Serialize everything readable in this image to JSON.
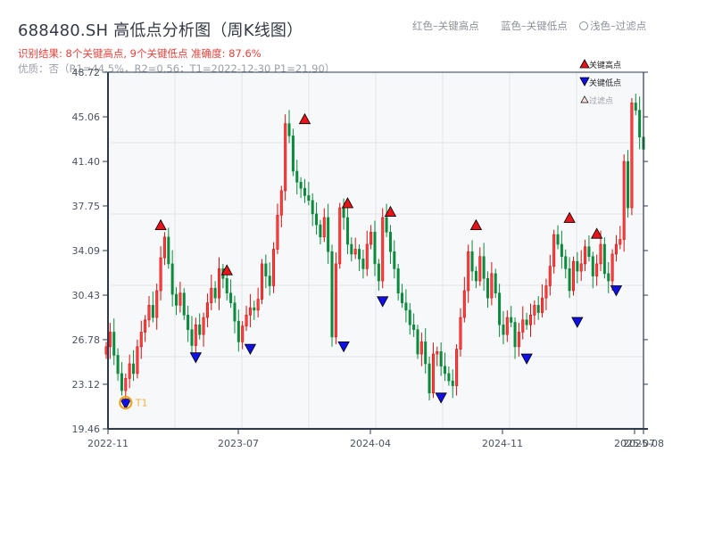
{
  "header": {
    "title": "688480.SH 高低点分析图（周K线图）",
    "subtitle": "识别结果: 8个关键高点, 9个关键低点  准确度: 87.6%",
    "quality": "优质：否（R1=44.5%，R2=0.56；T1=2022-12-30 P1=21.90）"
  },
  "top_legend": {
    "red": "红色–关键高点",
    "blue": "蓝色–关键低点",
    "faded": "浅色–过滤点"
  },
  "legend": {
    "high": "关键高点",
    "low": "关键低点",
    "filtered": "过滤点"
  },
  "colors": {
    "up": "#d40f0f",
    "down": "#0a8a3a",
    "high_marker": "#e8141a",
    "low_marker": "#1010e6",
    "t1_ring": "#f0a020",
    "axis": "#2e3a4a",
    "grid": "#e2e5ea",
    "plot_bg": "#f6f8fa"
  },
  "t1_label": "T1",
  "chart_data": {
    "type": "candlestick",
    "title": "688480.SH 高低点分析图（周K线图）",
    "xlabel": "",
    "ylabel": "",
    "ylim": [
      19.46,
      48.72
    ],
    "yticks": [
      19.46,
      23.12,
      26.78,
      30.43,
      34.09,
      37.75,
      41.4,
      45.06,
      48.72
    ],
    "xticks": [
      {
        "label": "2022-11",
        "index": 0
      },
      {
        "label": "2023-07",
        "index": 34
      },
      {
        "label": "2024-04",
        "index": 68
      },
      {
        "label": "2024-11",
        "index": 102
      },
      {
        "label": "2025-07",
        "index": 136
      },
      {
        "label": "2025-08",
        "index": 138
      }
    ],
    "grid": true,
    "legend_position": "upper right",
    "closes": [
      26.2,
      27.4,
      25.5,
      24.0,
      22.6,
      23.6,
      24.8,
      24.0,
      26.2,
      27.4,
      28.4,
      29.6,
      28.6,
      30.8,
      33.5,
      35.2,
      33.0,
      30.5,
      29.6,
      30.6,
      28.8,
      27.6,
      26.3,
      28.0,
      27.2,
      28.6,
      29.8,
      31.0,
      30.2,
      32.6,
      31.8,
      30.6,
      29.8,
      28.3,
      26.6,
      27.9,
      28.8,
      29.4,
      29.2,
      30.1,
      33.0,
      32.0,
      31.2,
      34.2,
      37.0,
      39.0,
      44.5,
      43.5,
      40.6,
      39.7,
      39.2,
      38.6,
      38.2,
      37.1,
      36.2,
      35.2,
      36.8,
      34.0,
      27.0,
      33.0,
      37.6,
      36.8,
      34.6,
      33.8,
      34.2,
      33.4,
      32.6,
      34.6,
      35.6,
      33.0,
      31.6,
      36.8,
      35.6,
      34.0,
      32.6,
      30.6,
      29.8,
      29.2,
      28.0,
      27.6,
      25.6,
      26.6,
      24.8,
      22.4,
      25.6,
      25.8,
      24.6,
      24.0,
      23.4,
      23.0,
      26.0,
      28.6,
      30.8,
      34.0,
      32.4,
      31.6,
      33.6,
      31.8,
      30.2,
      32.2,
      30.6,
      28.0,
      27.2,
      28.6,
      28.2,
      26.2,
      27.4,
      28.4,
      28.0,
      28.8,
      29.6,
      29.0,
      30.2,
      31.2,
      32.8,
      35.4,
      34.6,
      33.6,
      32.6,
      30.8,
      33.2,
      32.4,
      33.0,
      34.4,
      33.6,
      32.0,
      33.0,
      34.6,
      32.2,
      31.6,
      33.8,
      34.6,
      35.0,
      41.4,
      37.6,
      46.2,
      45.6,
      43.4,
      42.4
    ],
    "key_highs": [
      {
        "index": 14,
        "price": 35.8
      },
      {
        "index": 31,
        "price": 32.1
      },
      {
        "index": 51,
        "price": 44.5
      },
      {
        "index": 62,
        "price": 37.6
      },
      {
        "index": 73,
        "price": 36.9
      },
      {
        "index": 95,
        "price": 35.8
      },
      {
        "index": 119,
        "price": 36.4
      },
      {
        "index": 126,
        "price": 35.1
      }
    ],
    "key_lows": [
      {
        "index": 5,
        "price": 21.9,
        "label": "T1"
      },
      {
        "index": 23,
        "price": 25.7
      },
      {
        "index": 37,
        "price": 26.4
      },
      {
        "index": 61,
        "price": 26.6
      },
      {
        "index": 71,
        "price": 30.3
      },
      {
        "index": 86,
        "price": 22.4
      },
      {
        "index": 108,
        "price": 25.6
      },
      {
        "index": 121,
        "price": 28.6
      },
      {
        "index": 131,
        "price": 31.2
      }
    ],
    "series": [
      {
        "name": "周K线",
        "type": "candlestick"
      }
    ]
  }
}
